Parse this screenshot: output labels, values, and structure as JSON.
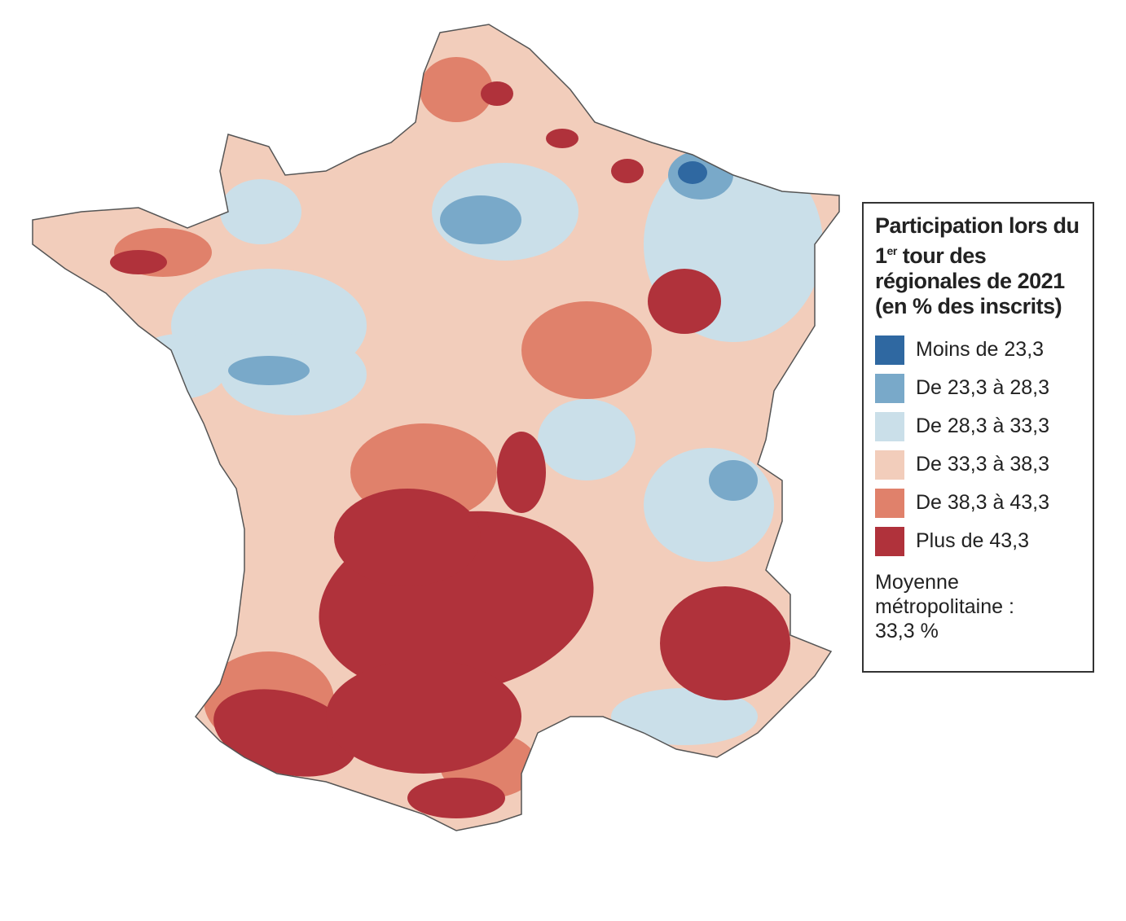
{
  "legend": {
    "title": {
      "before": "Participation lors du 1",
      "superscript": "er",
      "after": " tour des régionales de 2021 (en % des inscrits)"
    },
    "items": [
      {
        "label": "Moins de 23,3",
        "color": "#2f68a1"
      },
      {
        "label": "De 23,3 à 28,3",
        "color": "#79a9c9"
      },
      {
        "label": "De 28,3 à 33,3",
        "color": "#cadfe9"
      },
      {
        "label": "De 33,3 à 38,3",
        "color": "#f2cdbb"
      },
      {
        "label": "De 38,3 à 43,3",
        "color": "#e0816b"
      },
      {
        "label": "Plus de 43,3",
        "color": "#b0323b"
      }
    ],
    "note": "Moyenne métropolitaine : 33,3 %"
  }
}
